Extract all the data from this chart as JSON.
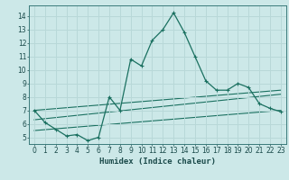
{
  "title": "",
  "xlabel": "Humidex (Indice chaleur)",
  "background_color": "#cce8e8",
  "grid_color": "#b8d8d8",
  "line_color": "#1a7060",
  "xlim": [
    -0.5,
    23.5
  ],
  "ylim": [
    4.5,
    14.8
  ],
  "xticks": [
    0,
    1,
    2,
    3,
    4,
    5,
    6,
    7,
    8,
    9,
    10,
    11,
    12,
    13,
    14,
    15,
    16,
    17,
    18,
    19,
    20,
    21,
    22,
    23
  ],
  "yticks": [
    5,
    6,
    7,
    8,
    9,
    10,
    11,
    12,
    13,
    14
  ],
  "series1_x": [
    0,
    1,
    2,
    3,
    4,
    5,
    6,
    7,
    8,
    9,
    10,
    11,
    12,
    13,
    14,
    15,
    16,
    17,
    18,
    19,
    20,
    21,
    22,
    23
  ],
  "series1_y": [
    7.0,
    6.1,
    5.6,
    5.1,
    5.2,
    4.75,
    5.0,
    8.0,
    7.0,
    10.8,
    10.3,
    12.2,
    13.0,
    14.25,
    12.8,
    11.0,
    9.2,
    8.5,
    8.5,
    9.0,
    8.7,
    7.5,
    7.15,
    6.9
  ],
  "series2_x": [
    0,
    23
  ],
  "series2_y": [
    7.0,
    8.5
  ],
  "series3_x": [
    0,
    23
  ],
  "series3_y": [
    6.3,
    8.2
  ],
  "series4_x": [
    0,
    23
  ],
  "series4_y": [
    5.5,
    7.0
  ]
}
